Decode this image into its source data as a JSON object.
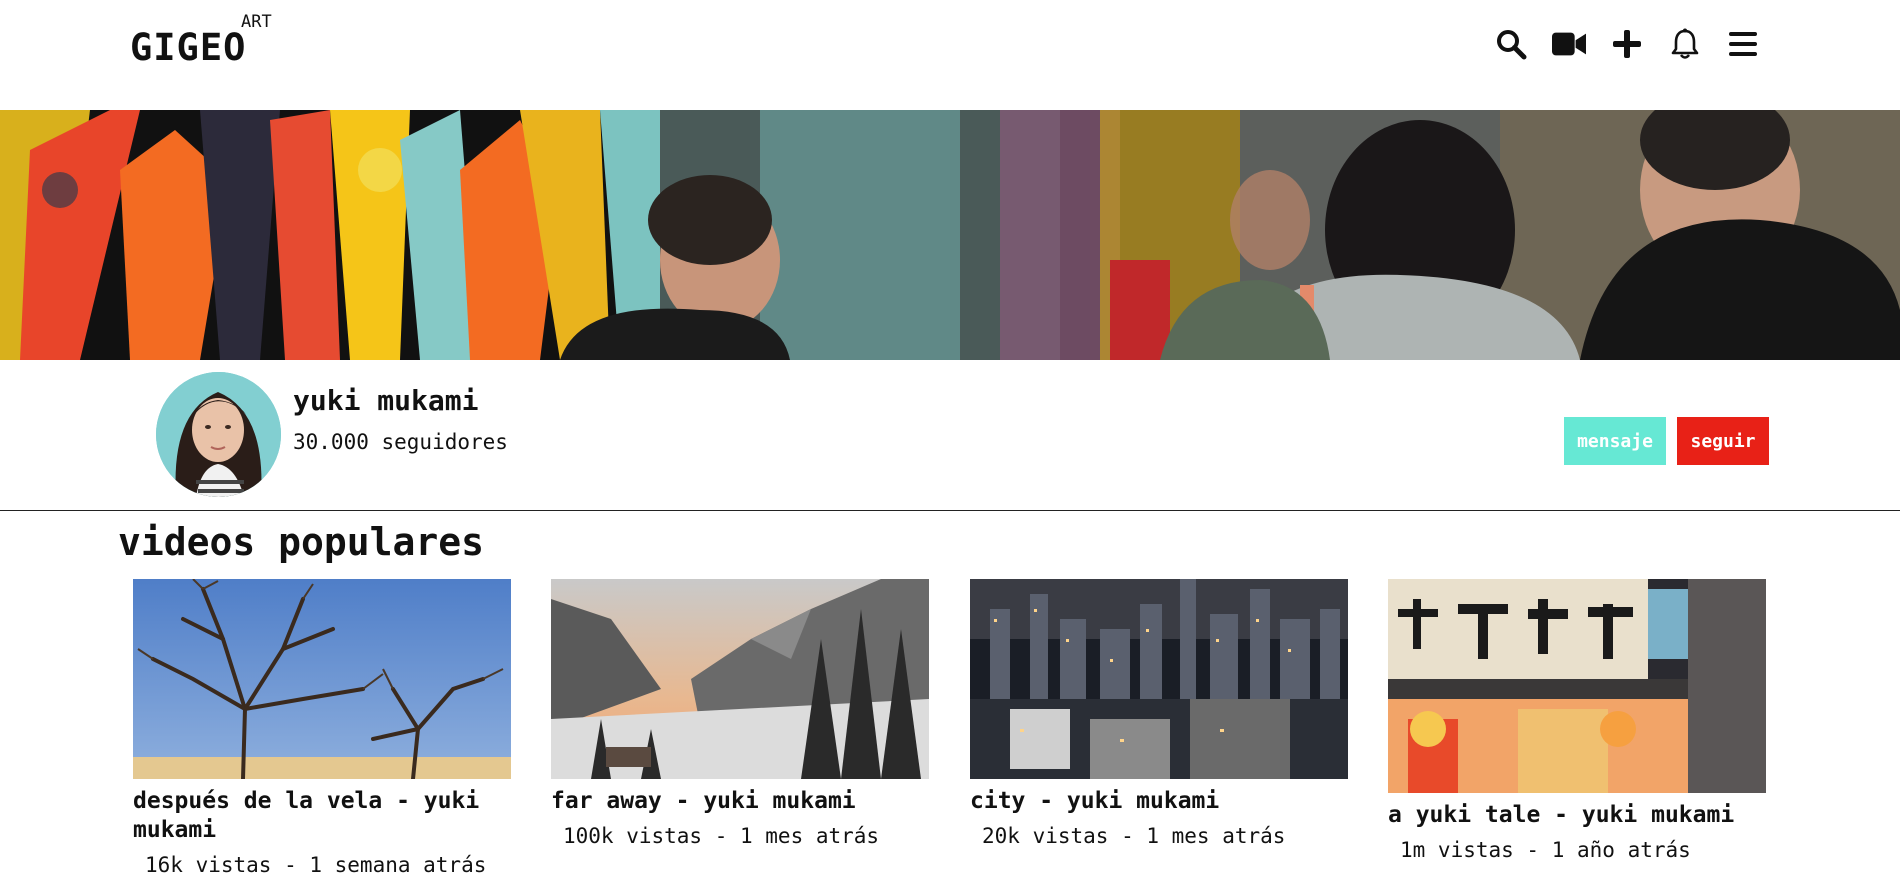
{
  "header": {
    "logo": "GIGEO",
    "logo_sup": "ART",
    "icons": [
      "search-icon",
      "video-camera-icon",
      "plus-icon",
      "bell-icon",
      "menu-icon"
    ]
  },
  "profile": {
    "name": "yuki mukami",
    "followers": "30.000 seguidores",
    "message_label": "mensaje",
    "follow_label": "seguir"
  },
  "colors": {
    "message_button": "#66e8d4",
    "follow_button": "#e82117"
  },
  "section": {
    "title": "videos populares"
  },
  "videos": [
    {
      "title": "después de la vela - yuki mukami",
      "meta": "16k vistas - 1 semana atrás"
    },
    {
      "title": "far away - yuki mukami",
      "meta": "100k vistas - 1 mes atrás"
    },
    {
      "title": "city - yuki mukami",
      "meta": "20k vistas - 1 mes atrás"
    },
    {
      "title": "a yuki tale - yuki mukami",
      "meta": "1m vistas - 1 año atrás"
    }
  ]
}
